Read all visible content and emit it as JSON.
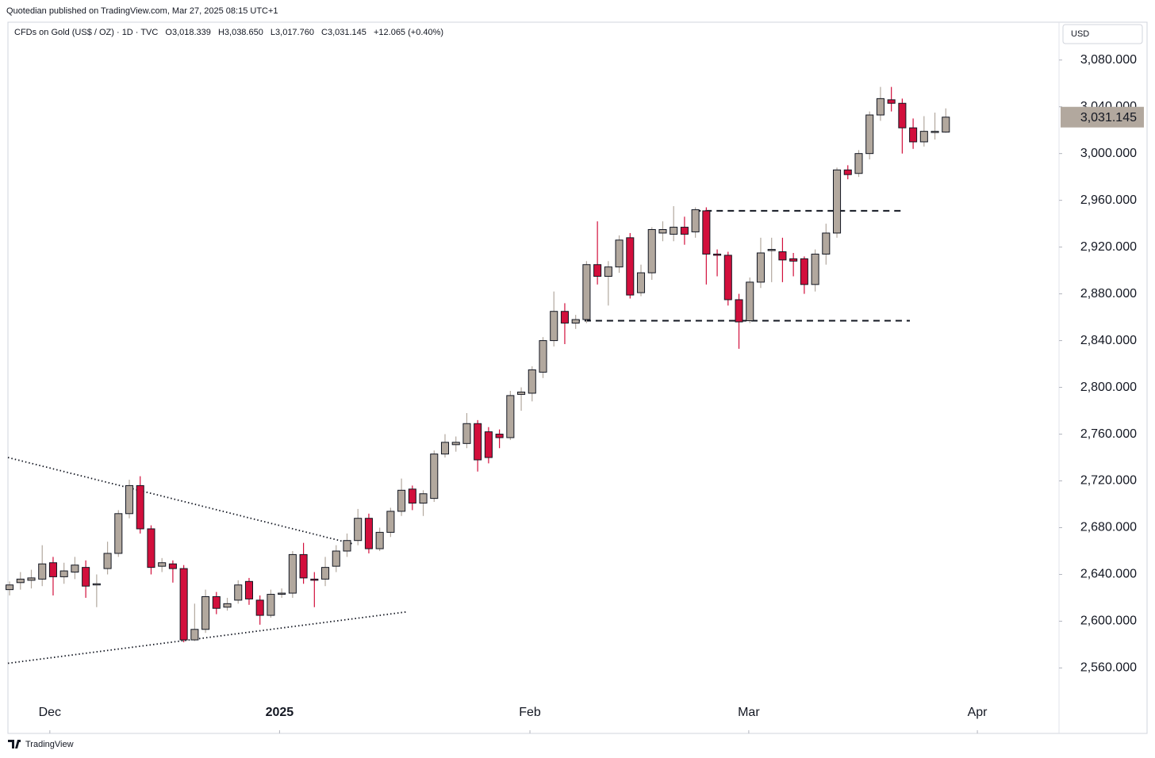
{
  "chart_data": {
    "type": "candlestick",
    "publisher": "Quotedian published on TradingView.com, Mar 27, 2025 08:15 UTC+1",
    "symbol": "CFDs on Gold (US$ / OZ) · 1D · TVC",
    "ohlc_labels": [
      "O3,018.339",
      "H3,038.650",
      "L3,017.760",
      "C3,031.145",
      "+12.065 (+0.40%)"
    ],
    "currency": "USD",
    "brand": "TradingView",
    "up_color": "#b2a89e",
    "down_color": "#d20f3c",
    "open": [
      2627,
      2633,
      2635,
      2636,
      2650,
      2638,
      2642,
      2646,
      2631,
      2645,
      2658,
      2692,
      2716,
      2679,
      2647,
      2649,
      2645,
      2584,
      2593,
      2621,
      2612,
      2618,
      2634,
      2618,
      2605,
      2623,
      2624,
      2657,
      2636,
      2636,
      2647,
      2660,
      2669,
      2688,
      2662,
      2676,
      2694,
      2713,
      2701,
      2705,
      2743,
      2751,
      2752,
      2769,
      2762,
      2760,
      2757,
      2794,
      2795,
      2813,
      2840,
      2865,
      2855,
      2858,
      2905,
      2895,
      2903,
      2928,
      2881,
      2898,
      2932,
      2931,
      2937,
      2933,
      2951,
      2914,
      2913,
      2875,
      2857,
      2890,
      2917,
      2916,
      2910,
      2910,
      2888,
      2914,
      2932,
      2986,
      2983,
      3000,
      3033,
      3046,
      3043,
      3022,
      3010,
      3018,
      3018.339
    ],
    "high": [
      2634,
      2642,
      2644,
      2665,
      2655,
      2650,
      2655,
      2652,
      2640,
      2668,
      2695,
      2721,
      2724,
      2682,
      2654,
      2652,
      2648,
      2615,
      2627,
      2625,
      2620,
      2635,
      2637,
      2622,
      2627,
      2628,
      2660,
      2667,
      2642,
      2655,
      2665,
      2675,
      2696,
      2692,
      2680,
      2697,
      2722,
      2716,
      2712,
      2746,
      2760,
      2758,
      2778,
      2772,
      2766,
      2764,
      2797,
      2800,
      2818,
      2843,
      2882,
      2872,
      2862,
      2908,
      2942,
      2908,
      2930,
      2932,
      2905,
      2937,
      2942,
      2955,
      2946,
      2954,
      2954,
      2918,
      2916,
      2880,
      2894,
      2928,
      2928,
      2928,
      2915,
      2912,
      2918,
      2940,
      2988,
      2990,
      3003,
      3036,
      3057,
      3057,
      3047,
      3030,
      3032,
      3035,
      3038.65
    ],
    "low": [
      2622,
      2627,
      2628,
      2630,
      2622,
      2632,
      2636,
      2620,
      2612,
      2640,
      2655,
      2688,
      2675,
      2640,
      2642,
      2633,
      2582,
      2583,
      2590,
      2606,
      2609,
      2615,
      2614,
      2597,
      2603,
      2620,
      2620,
      2632,
      2612,
      2630,
      2642,
      2655,
      2665,
      2658,
      2660,
      2672,
      2690,
      2695,
      2690,
      2702,
      2740,
      2745,
      2748,
      2728,
      2735,
      2748,
      2755,
      2780,
      2788,
      2808,
      2835,
      2837,
      2850,
      2855,
      2888,
      2870,
      2898,
      2876,
      2878,
      2892,
      2925,
      2925,
      2922,
      2928,
      2888,
      2895,
      2870,
      2833,
      2855,
      2885,
      2890,
      2890,
      2895,
      2880,
      2882,
      2905,
      2928,
      2978,
      2980,
      2995,
      3028,
      3036,
      3000,
      3004,
      3006,
      3012,
      3017.76
    ],
    "close": [
      2631,
      2636,
      2637,
      2649,
      2638,
      2643,
      2648,
      2630,
      2632,
      2658,
      2692,
      2716,
      2679,
      2646,
      2650,
      2645,
      2584,
      2593,
      2621,
      2611,
      2615,
      2631,
      2619,
      2605,
      2623,
      2624,
      2657,
      2637,
      2635,
      2646,
      2660,
      2669,
      2688,
      2662,
      2676,
      2694,
      2712,
      2701,
      2709,
      2743,
      2753,
      2753,
      2769,
      2738,
      2740,
      2757,
      2793,
      2796,
      2815,
      2840,
      2865,
      2855,
      2858,
      2905,
      2895,
      2903,
      2926,
      2879,
      2898,
      2935,
      2935,
      2937,
      2931,
      2952,
      2914,
      2913,
      2875,
      2856,
      2890,
      2915,
      2918,
      2909,
      2908,
      2888,
      2914,
      2932,
      2986,
      2982,
      3000,
      3033,
      3047,
      3043,
      3022,
      3010,
      3019,
      3019,
      3031.145
    ],
    "last_price": {
      "value": 3031.145,
      "label": "3,031.145"
    },
    "xlim": [
      -0.15,
      96.4
    ],
    "xticks": [
      {
        "value": 3.7,
        "label": "Dec"
      },
      {
        "value": 24.8,
        "label": "2025"
      },
      {
        "value": 47.8,
        "label": "Feb"
      },
      {
        "value": 67.9,
        "label": "Mar"
      },
      {
        "value": 88.9,
        "label": "Apr"
      }
    ],
    "ylim": [
      2504,
      3111
    ],
    "yticks": [
      {
        "value": 2560,
        "label": "2,560.000"
      },
      {
        "value": 2600,
        "label": "2,600.000"
      },
      {
        "value": 2640,
        "label": "2,640.000"
      },
      {
        "value": 2680,
        "label": "2,680.000"
      },
      {
        "value": 2720,
        "label": "2,720.000"
      },
      {
        "value": 2760,
        "label": "2,760.000"
      },
      {
        "value": 2800,
        "label": "2,800.000"
      },
      {
        "value": 2840,
        "label": "2,840.000"
      },
      {
        "value": 2880,
        "label": "2,880.000"
      },
      {
        "value": 2920,
        "label": "2,920.000"
      },
      {
        "value": 2960,
        "label": "2,960.000"
      },
      {
        "value": 3000,
        "label": "3,000.000"
      },
      {
        "value": 3040,
        "label": "3,040.000"
      },
      {
        "value": 3080,
        "label": "3,080.000"
      }
    ],
    "annotations": [
      {
        "style": "dotted",
        "x": [
          -0.15,
          31.6
        ],
        "y": [
          2740,
          2666
        ]
      },
      {
        "style": "dotted",
        "x": [
          -0.15,
          36.5
        ],
        "y": [
          2564,
          2608
        ]
      },
      {
        "style": "dashed",
        "x": [
          62.9,
          82.2
        ],
        "y": [
          2951,
          2951
        ]
      },
      {
        "style": "dashed",
        "x": [
          51.8,
          82.7
        ],
        "y": [
          2857,
          2857
        ]
      }
    ]
  }
}
